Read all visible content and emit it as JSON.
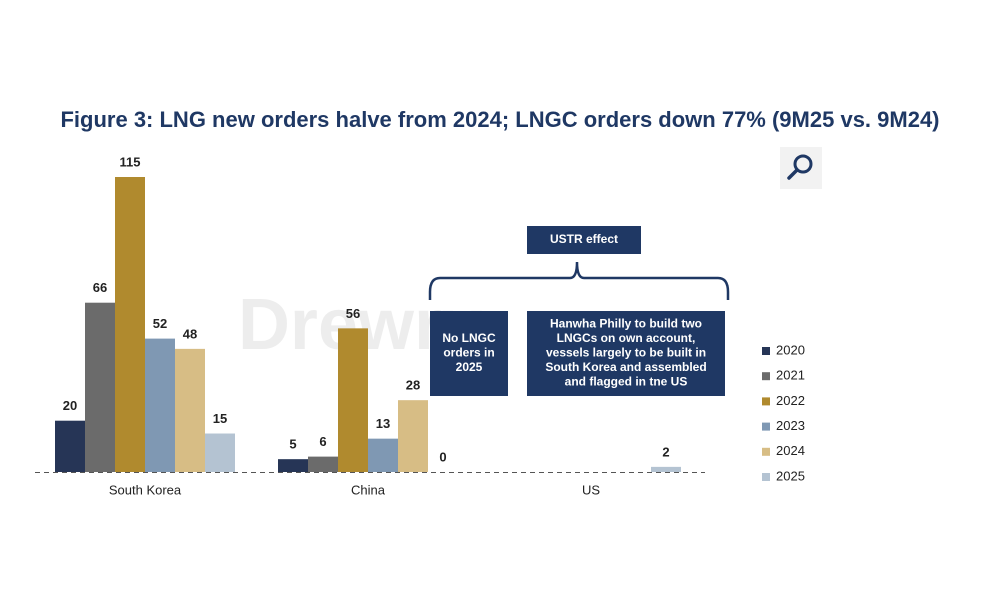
{
  "chart_data": {
    "type": "bar",
    "title": "Figure 3: LNG new orders halve from 2024; LNGC orders down 77% (9M25 vs. 9M24)",
    "categories": [
      "South Korea",
      "China",
      "US"
    ],
    "series": [
      {
        "name": "2020",
        "color": "#263556",
        "values": [
          20,
          5,
          null
        ]
      },
      {
        "name": "2021",
        "color": "#6b6b6b",
        "values": [
          66,
          6,
          null
        ]
      },
      {
        "name": "2022",
        "color": "#b08a2e",
        "values": [
          115,
          56,
          null
        ]
      },
      {
        "name": "2023",
        "color": "#7f98b3",
        "values": [
          52,
          13,
          null
        ]
      },
      {
        "name": "2024",
        "color": "#d7bd85",
        "values": [
          48,
          28,
          null
        ]
      },
      {
        "name": "2025",
        "color": "#b4c3d2",
        "values": [
          15,
          0,
          2
        ]
      }
    ],
    "annotations": [
      {
        "text": [
          "USTR effect"
        ]
      },
      {
        "text": [
          "No LNGC",
          "orders in",
          "2025"
        ]
      },
      {
        "text": [
          "Hanwha Philly to build two",
          "LNGCs on own account,",
          "vessels largely to be built in",
          "South Korea and assembled",
          "and flagged in tne US"
        ]
      }
    ],
    "watermark": "Drewry"
  }
}
